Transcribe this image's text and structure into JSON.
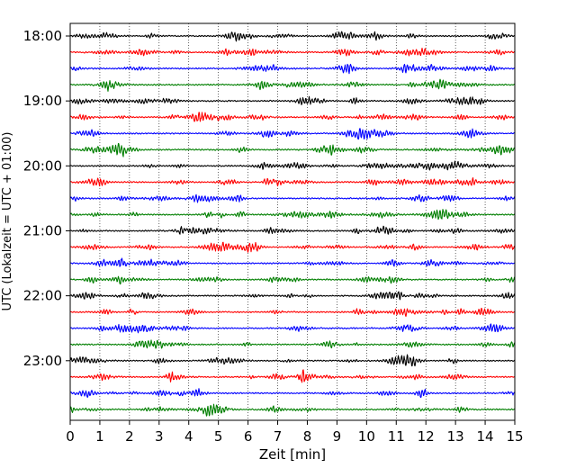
{
  "chart_data": {
    "type": "line",
    "title": "",
    "xlabel": "Zeit  [min]",
    "ylabel": "UTC (Lokalzeit = UTC + 01:00)",
    "xlim": [
      0,
      15
    ],
    "x_ticks": [
      0,
      1,
      2,
      3,
      4,
      5,
      6,
      7,
      8,
      9,
      10,
      11,
      12,
      13,
      14,
      15
    ],
    "x_tick_labels": [
      "0",
      "1",
      "2",
      "3",
      "4",
      "5",
      "6",
      "7",
      "8",
      "9",
      "10",
      "11",
      "12",
      "13",
      "14",
      "15"
    ],
    "y_ticks": [
      "18:00",
      "19:00",
      "20:00",
      "21:00",
      "22:00",
      "23:00"
    ],
    "y_tick_rows": [
      0,
      4,
      8,
      12,
      16,
      20
    ],
    "grid": "vertical dotted",
    "trace_interval_min": 15,
    "trace_colors": [
      "#000000",
      "#ff0000",
      "#0000ff",
      "#007f00"
    ],
    "traces": [
      {
        "start": "18:00"
      },
      {
        "start": "18:15"
      },
      {
        "start": "18:30"
      },
      {
        "start": "18:45"
      },
      {
        "start": "19:00"
      },
      {
        "start": "19:15"
      },
      {
        "start": "19:30"
      },
      {
        "start": "19:45"
      },
      {
        "start": "20:00"
      },
      {
        "start": "20:15"
      },
      {
        "start": "20:30"
      },
      {
        "start": "20:45"
      },
      {
        "start": "21:00"
      },
      {
        "start": "21:15"
      },
      {
        "start": "21:30"
      },
      {
        "start": "21:45"
      },
      {
        "start": "22:00"
      },
      {
        "start": "22:15"
      },
      {
        "start": "22:30"
      },
      {
        "start": "22:45"
      },
      {
        "start": "23:00"
      },
      {
        "start": "23:15"
      },
      {
        "start": "23:30"
      },
      {
        "start": "23:45"
      }
    ]
  }
}
